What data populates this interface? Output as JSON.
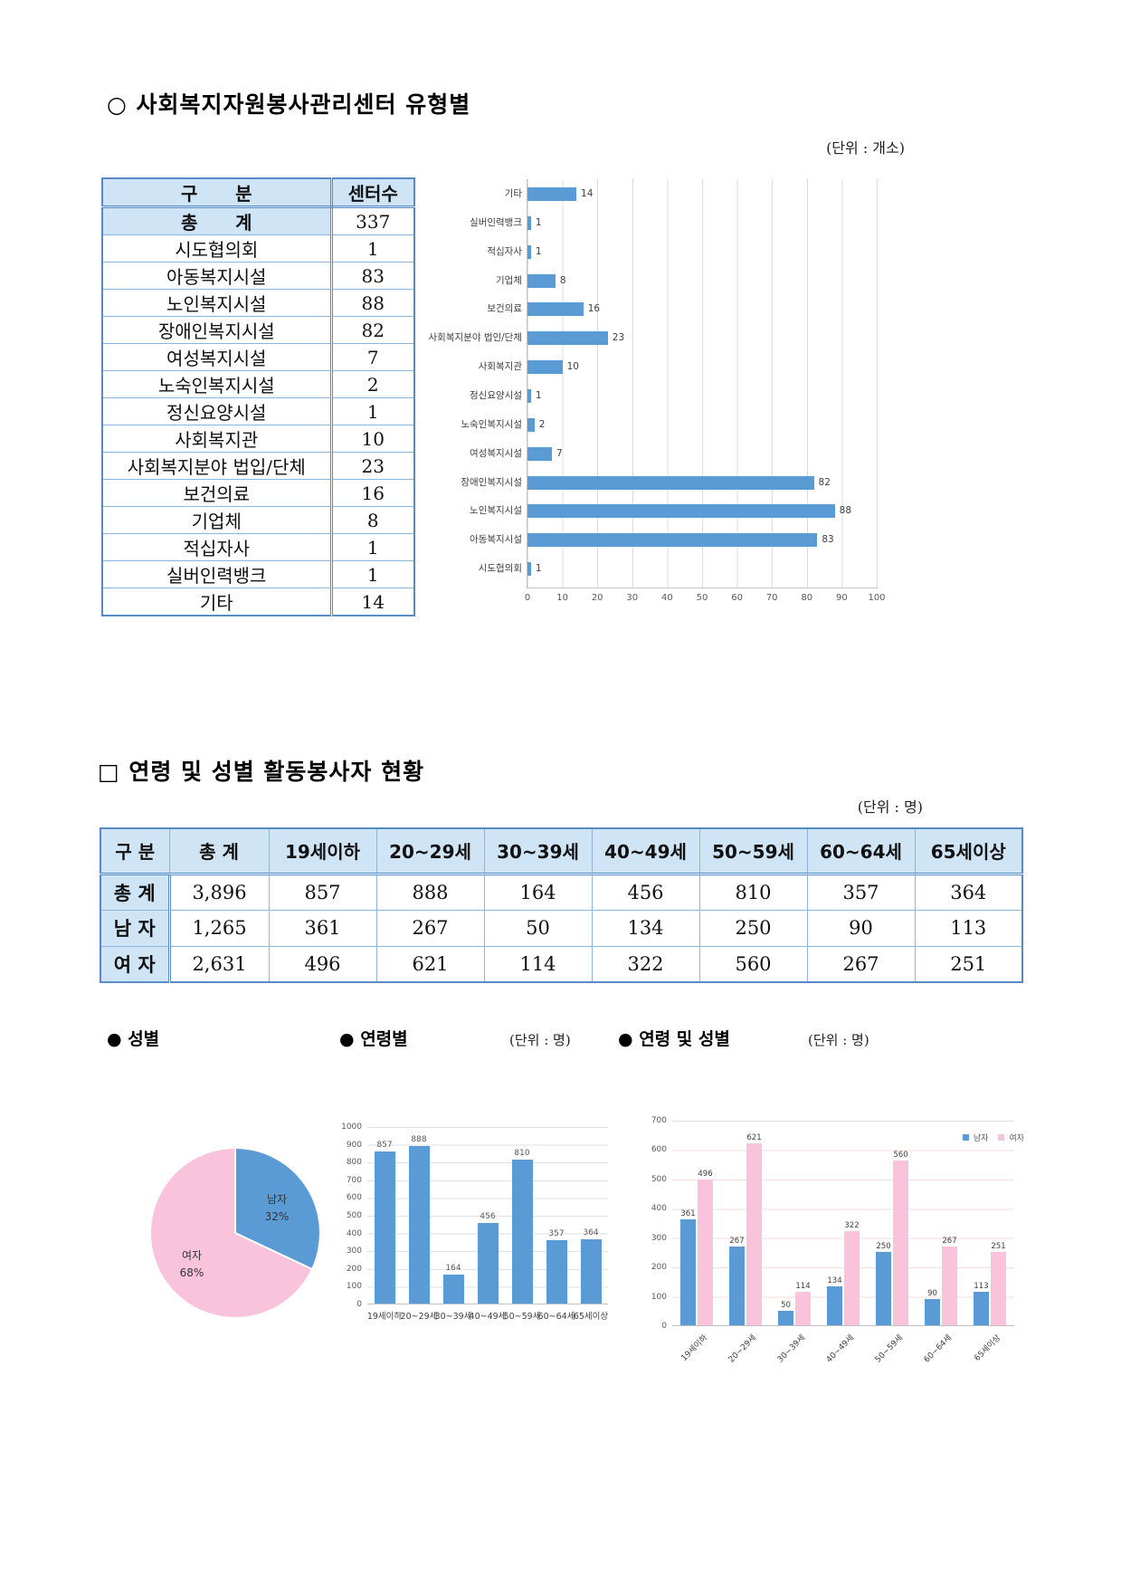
{
  "section1": {
    "title": "○ 사회복지자원봉사관리센터 유형별",
    "unit": "(단위 : 개소)"
  },
  "center_table": {
    "headers": [
      "구      분",
      "센터수"
    ],
    "total": {
      "label": "총      계",
      "value": "337"
    },
    "rows": [
      {
        "label": "시도협의회",
        "value": "1"
      },
      {
        "label": "아동복지시설",
        "value": "83"
      },
      {
        "label": "노인복지시설",
        "value": "88"
      },
      {
        "label": "장애인복지시설",
        "value": "82"
      },
      {
        "label": "여성복지시설",
        "value": "7"
      },
      {
        "label": "노숙인복지시설",
        "value": "2"
      },
      {
        "label": "정신요양시설",
        "value": "1"
      },
      {
        "label": "사회복지관",
        "value": "10"
      },
      {
        "label": "사회복지분야 법입/단체",
        "value": "23"
      },
      {
        "label": "보건의료",
        "value": "16"
      },
      {
        "label": "기업체",
        "value": "8"
      },
      {
        "label": "적십자사",
        "value": "1"
      },
      {
        "label": "실버인력뱅크",
        "value": "1"
      },
      {
        "label": "기타",
        "value": "14"
      }
    ]
  },
  "section2": {
    "title": "□ 연령 및 성별 활동봉사자 현황",
    "unit": "(단위 : 명)"
  },
  "age_table": {
    "headers": [
      "구 분",
      "총 계",
      "19세이하",
      "20~29세",
      "30~39세",
      "40~49세",
      "50~59세",
      "60~64세",
      "65세이상"
    ],
    "rows": [
      {
        "label": "총 계",
        "values": [
          "3,896",
          "857",
          "888",
          "164",
          "456",
          "810",
          "357",
          "364"
        ]
      },
      {
        "label": "남 자",
        "values": [
          "1,265",
          "361",
          "267",
          "50",
          "134",
          "250",
          "90",
          "113"
        ]
      },
      {
        "label": "여 자",
        "values": [
          "2,631",
          "496",
          "621",
          "114",
          "322",
          "560",
          "267",
          "251"
        ]
      }
    ]
  },
  "mini_titles": {
    "gender": "● 성별",
    "age": "● 연령별",
    "age_unit": "(단위 : 명)",
    "age_gender": "● 연령 및 성별",
    "age_gender_unit": "(단위 : 명)"
  },
  "colors": {
    "bar_blue": "#5b9bd5",
    "pie_pink": "#f9c3dc",
    "table_header_bg": "#cfe4f5",
    "table_border": "#5a8ac6",
    "grid_gray": "#dcdcdc"
  },
  "chart_data": [
    {
      "type": "bar",
      "orientation": "horizontal",
      "title": "사회복지자원봉사관리센터 유형별",
      "categories_top_to_bottom": [
        "기타",
        "실버인력뱅크",
        "적십자사",
        "기업체",
        "보건의료",
        "사회복지분야 법인/단체",
        "사회복지관",
        "정신요양시설",
        "노숙인복지시설",
        "여성복지시설",
        "장애인복지시설",
        "노인복지시설",
        "아동복지시설",
        "시도협의회"
      ],
      "values": [
        14,
        1,
        1,
        8,
        16,
        23,
        10,
        1,
        2,
        7,
        82,
        88,
        83,
        1
      ],
      "xlim": [
        0,
        100
      ],
      "xticks": [
        0,
        10,
        20,
        30,
        40,
        50,
        60,
        70,
        80,
        90,
        100
      ],
      "bar_color": "#5b9bd5",
      "grid": true,
      "data_labels": true
    },
    {
      "type": "pie",
      "title": "성별",
      "slices": [
        {
          "label": "남자",
          "pct": "32%",
          "value": 32,
          "color": "#5b9bd5"
        },
        {
          "label": "여자",
          "pct": "68%",
          "value": 68,
          "color": "#f9c3dc"
        }
      ],
      "start_angle_deg": 0,
      "direction": "clockwise"
    },
    {
      "type": "bar",
      "title": "연령별",
      "categories": [
        "19세이하",
        "20~29세",
        "30~39세",
        "40~49세",
        "50~59세",
        "60~64세",
        "65세이상"
      ],
      "values": [
        857,
        888,
        164,
        456,
        810,
        357,
        364
      ],
      "ylim": [
        0,
        1000
      ],
      "ytick_step": 100,
      "bar_color": "#5b9bd5",
      "grid": true,
      "data_labels": true
    },
    {
      "type": "bar",
      "title": "연령 및 성별",
      "categories": [
        "19세이하",
        "20~29세",
        "30~39세",
        "40~49세",
        "50~59세",
        "60~64세",
        "65세이상"
      ],
      "series": [
        {
          "name": "남자",
          "color": "#5b9bd5",
          "values": [
            361,
            267,
            50,
            134,
            250,
            90,
            113
          ]
        },
        {
          "name": "여자",
          "color": "#f9c3dc",
          "values": [
            496,
            621,
            114,
            322,
            560,
            267,
            251
          ]
        }
      ],
      "ylim": [
        0,
        700
      ],
      "ytick_step": 100,
      "legend_position": "top-right",
      "grid": true,
      "data_labels": true
    }
  ]
}
